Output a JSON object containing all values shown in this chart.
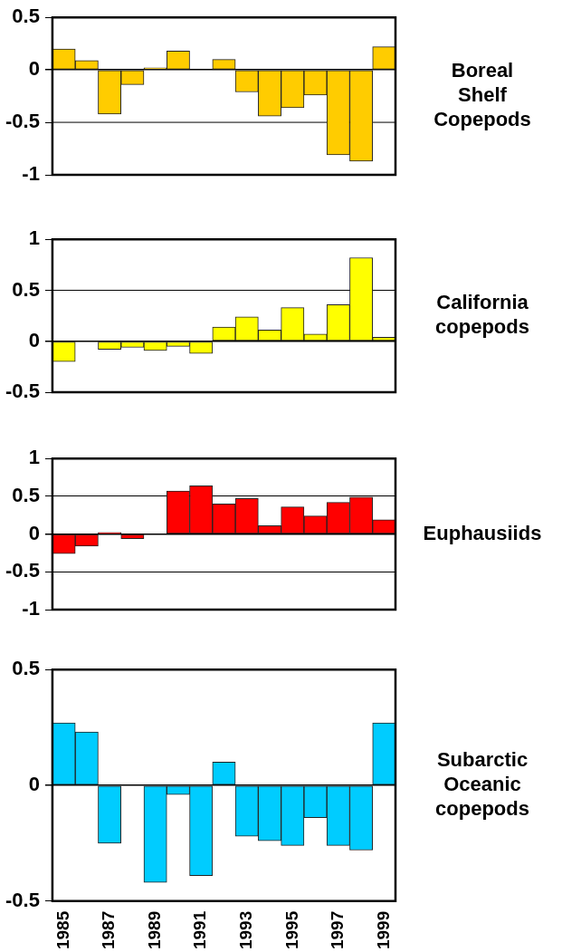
{
  "chart_data": [
    {
      "type": "bar",
      "categories": [
        "1985",
        null,
        "1987",
        null,
        "1989",
        null,
        "1991",
        null,
        "1993",
        null,
        "1995",
        null,
        "1997",
        null,
        "1999"
      ],
      "series": [
        {
          "name": "Boreal Shelf Copepods",
          "color": "#ffcc00",
          "values": [
            0.2,
            0.09,
            -0.42,
            -0.14,
            0.02,
            0.18,
            0,
            0.1,
            -0.21,
            -0.44,
            -0.36,
            -0.24,
            -0.81,
            -0.87,
            0.22
          ]
        }
      ],
      "ylim": [
        -1,
        0.5
      ],
      "yticks": [
        -1,
        -0.5,
        0,
        0.5
      ],
      "ref_lines": [
        {
          "axis": "y",
          "value": -0.5,
          "color": "#000000"
        }
      ],
      "tick_labels": "y"
    },
    {
      "type": "bar",
      "categories": [
        "1985",
        null,
        "1987",
        null,
        "1989",
        null,
        "1991",
        null,
        "1993",
        null,
        "1995",
        null,
        "1997",
        null,
        "1999"
      ],
      "series": [
        {
          "name": "California copepods",
          "color": "#ffff00",
          "values": [
            -0.2,
            0,
            -0.08,
            -0.06,
            -0.09,
            -0.05,
            -0.12,
            0.14,
            0.24,
            0.11,
            0.33,
            0.07,
            0.36,
            0.82,
            0.04
          ]
        }
      ],
      "ylim": [
        -0.5,
        1
      ],
      "yticks": [
        -0.5,
        0,
        0.5,
        1
      ],
      "ref_lines": [
        {
          "axis": "y",
          "value": 0.5,
          "color": "#000000"
        }
      ],
      "tick_labels": "y"
    },
    {
      "type": "bar",
      "categories": [
        "1985",
        null,
        "1987",
        null,
        "1989",
        null,
        "1991",
        null,
        "1993",
        null,
        "1995",
        null,
        "1997",
        null,
        "1999"
      ],
      "series": [
        {
          "name": "Euphausiids",
          "color": "#ff0000",
          "values": [
            -0.26,
            -0.16,
            0.02,
            -0.06,
            0,
            0.57,
            0.64,
            0.4,
            0.47,
            0.11,
            0.36,
            0.24,
            0.42,
            0.49,
            0.19
          ]
        }
      ],
      "ylim": [
        -1,
        1
      ],
      "yticks": [
        -1,
        -0.5,
        0,
        0.5,
        1
      ],
      "grid": "y",
      "tick_labels": "y"
    },
    {
      "type": "bar",
      "categories": [
        "1985",
        null,
        "1987",
        null,
        "1989",
        null,
        "1991",
        null,
        "1993",
        null,
        "1995",
        null,
        "1997",
        null,
        "1999"
      ],
      "series": [
        {
          "name": "Subarctic Oceanic copepods",
          "color": "#00ccff",
          "values": [
            0.27,
            0.23,
            -0.25,
            0,
            -0.42,
            -0.04,
            -0.39,
            0.1,
            -0.22,
            -0.24,
            -0.26,
            -0.14,
            -0.26,
            -0.28,
            0.27
          ]
        }
      ],
      "ylim": [
        -0.5,
        0.5
      ],
      "yticks": [
        -0.5,
        0,
        0.5
      ]
    }
  ]
}
